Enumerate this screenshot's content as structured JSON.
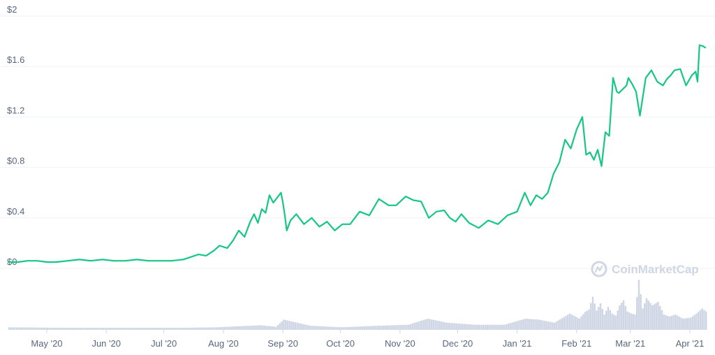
{
  "colors": {
    "line": "#16c784",
    "volume": "#cfd6e4",
    "grid": "#eff2f5",
    "tick_text": "#58667e",
    "watermark": "#cfd6e4"
  },
  "watermark": {
    "text": "CoinMarketCap",
    "icon": "coinmarketcap-logo-icon"
  },
  "chart_data": {
    "type": "line",
    "y_ticks": [
      "$2",
      "$1.6",
      "$1.2",
      "$0.8",
      "$0.4",
      "$0"
    ],
    "y_tick_values": [
      2,
      1.6,
      1.2,
      0.8,
      0.4,
      0
    ],
    "ylim": [
      0,
      2
    ],
    "x_ticks": [
      "May '20",
      "Jun '20",
      "Jul '20",
      "Aug '20",
      "Sep '20",
      "Oct '20",
      "Nov '20",
      "Dec '20",
      "Jan '21",
      "Feb '21",
      "Mar '21",
      "Apr '21"
    ],
    "x_tick_dates": [
      "2020-05-01",
      "2020-06-01",
      "2020-07-01",
      "2020-08-01",
      "2020-09-01",
      "2020-10-01",
      "2020-11-01",
      "2020-12-01",
      "2021-01-01",
      "2021-02-01",
      "2021-03-01",
      "2021-04-01"
    ],
    "xlim": [
      "2020-04-11",
      "2021-04-09"
    ],
    "grid": true,
    "price": {
      "x": [
        "2020-04-11",
        "2020-04-16",
        "2020-04-21",
        "2020-04-26",
        "2020-05-01",
        "2020-05-06",
        "2020-05-12",
        "2020-05-18",
        "2020-05-24",
        "2020-05-30",
        "2020-06-05",
        "2020-06-11",
        "2020-06-17",
        "2020-06-23",
        "2020-06-29",
        "2020-07-05",
        "2020-07-11",
        "2020-07-15",
        "2020-07-19",
        "2020-07-23",
        "2020-07-27",
        "2020-07-30",
        "2020-08-03",
        "2020-08-06",
        "2020-08-09",
        "2020-08-12",
        "2020-08-15",
        "2020-08-17",
        "2020-08-19",
        "2020-08-21",
        "2020-08-23",
        "2020-08-25",
        "2020-08-27",
        "2020-08-29",
        "2020-08-31",
        "2020-09-01",
        "2020-09-02",
        "2020-09-03",
        "2020-09-05",
        "2020-09-08",
        "2020-09-12",
        "2020-09-16",
        "2020-09-20",
        "2020-09-24",
        "2020-09-28",
        "2020-10-02",
        "2020-10-06",
        "2020-10-11",
        "2020-10-16",
        "2020-10-21",
        "2020-10-26",
        "2020-10-30",
        "2020-11-04",
        "2020-11-08",
        "2020-11-12",
        "2020-11-16",
        "2020-11-20",
        "2020-11-24",
        "2020-11-27",
        "2020-11-30",
        "2020-12-03",
        "2020-12-07",
        "2020-12-12",
        "2020-12-17",
        "2020-12-22",
        "2020-12-27",
        "2021-01-01",
        "2021-01-05",
        "2021-01-08",
        "2021-01-11",
        "2021-01-14",
        "2021-01-17",
        "2021-01-20",
        "2021-01-23",
        "2021-01-26",
        "2021-01-29",
        "2021-02-01",
        "2021-02-04",
        "2021-02-06",
        "2021-02-08",
        "2021-02-10",
        "2021-02-12",
        "2021-02-14",
        "2021-02-16",
        "2021-02-18",
        "2021-02-20",
        "2021-02-22",
        "2021-02-23",
        "2021-02-25",
        "2021-02-27",
        "2021-02-28",
        "2021-03-02",
        "2021-03-04",
        "2021-03-06",
        "2021-03-09",
        "2021-03-12",
        "2021-03-15",
        "2021-03-18",
        "2021-03-20",
        "2021-03-22",
        "2021-03-24",
        "2021-03-27",
        "2021-03-30",
        "2021-04-02",
        "2021-04-04",
        "2021-04-05",
        "2021-04-06",
        "2021-04-08",
        "2021-04-09"
      ],
      "y": [
        0.05,
        0.05,
        0.06,
        0.06,
        0.05,
        0.05,
        0.06,
        0.07,
        0.06,
        0.07,
        0.06,
        0.06,
        0.07,
        0.06,
        0.06,
        0.06,
        0.07,
        0.09,
        0.11,
        0.1,
        0.14,
        0.18,
        0.16,
        0.22,
        0.3,
        0.25,
        0.37,
        0.43,
        0.36,
        0.47,
        0.44,
        0.58,
        0.52,
        0.56,
        0.6,
        0.52,
        0.42,
        0.3,
        0.38,
        0.43,
        0.35,
        0.4,
        0.33,
        0.37,
        0.3,
        0.35,
        0.35,
        0.45,
        0.42,
        0.55,
        0.5,
        0.5,
        0.57,
        0.54,
        0.53,
        0.4,
        0.45,
        0.46,
        0.4,
        0.37,
        0.43,
        0.36,
        0.32,
        0.38,
        0.35,
        0.42,
        0.45,
        0.6,
        0.5,
        0.58,
        0.55,
        0.6,
        0.75,
        0.84,
        1.02,
        0.95,
        1.1,
        1.2,
        0.9,
        0.92,
        0.86,
        0.94,
        0.81,
        1.08,
        1.05,
        1.51,
        1.4,
        1.39,
        1.42,
        1.45,
        1.51,
        1.46,
        1.4,
        1.21,
        1.51,
        1.57,
        1.48,
        1.45,
        1.5,
        1.53,
        1.57,
        1.58,
        1.45,
        1.53,
        1.56,
        1.48,
        1.77,
        1.76,
        1.75
      ]
    },
    "volume": {
      "x": [
        "2020-04-11",
        "2020-05-11",
        "2020-06-10",
        "2020-07-10",
        "2020-07-28",
        "2020-08-20",
        "2020-08-28",
        "2020-09-01",
        "2020-09-15",
        "2020-10-01",
        "2020-10-20",
        "2020-11-05",
        "2020-11-15",
        "2020-11-25",
        "2020-12-10",
        "2020-12-25",
        "2021-01-05",
        "2021-01-12",
        "2021-01-20",
        "2021-01-28",
        "2021-02-02",
        "2021-02-05",
        "2021-02-07",
        "2021-02-09",
        "2021-02-11",
        "2021-02-13",
        "2021-02-15",
        "2021-02-17",
        "2021-02-19",
        "2021-02-21",
        "2021-02-23",
        "2021-02-25",
        "2021-02-27",
        "2021-03-01",
        "2021-03-03",
        "2021-03-05",
        "2021-03-07",
        "2021-03-09",
        "2021-03-12",
        "2021-03-15",
        "2021-03-18",
        "2021-03-21",
        "2021-03-24",
        "2021-03-28",
        "2021-04-01",
        "2021-04-04",
        "2021-04-07",
        "2021-04-09"
      ],
      "y": [
        0.05,
        0.04,
        0.04,
        0.04,
        0.05,
        0.09,
        0.06,
        0.2,
        0.08,
        0.05,
        0.08,
        0.1,
        0.22,
        0.14,
        0.1,
        0.1,
        0.22,
        0.2,
        0.14,
        0.32,
        0.22,
        0.35,
        0.4,
        0.65,
        0.38,
        0.52,
        0.3,
        0.45,
        0.32,
        0.28,
        0.48,
        0.58,
        0.36,
        0.32,
        0.3,
        0.98,
        0.42,
        0.62,
        0.48,
        0.55,
        0.3,
        0.26,
        0.3,
        0.22,
        0.24,
        0.32,
        0.42,
        0.36
      ]
    }
  }
}
